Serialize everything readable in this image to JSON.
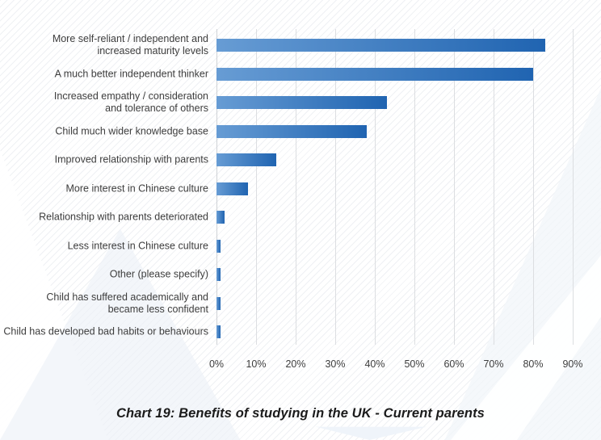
{
  "chart_data": {
    "type": "bar",
    "orientation": "horizontal",
    "title": "Chart 19: Benefits of studying in the UK - Current parents",
    "categories": [
      "More self-reliant / independent and increased maturity levels",
      "A much better independent thinker",
      "Increased empathy / consideration and tolerance of others",
      "Child much wider knowledge base",
      "Improved relationship with parents",
      "More interest in Chinese culture",
      "Relationship with parents deteriorated",
      "Less interest in Chinese culture",
      "Other (please specify)",
      "Child has suffered academically and became less confident",
      "Child has developed bad habits or behaviours"
    ],
    "category_line_breaks": [
      [
        "More self-reliant / independent and",
        "increased maturity levels"
      ],
      [
        "A much better independent thinker"
      ],
      [
        "Increased empathy / consideration",
        "and tolerance of others"
      ],
      [
        "Child much wider knowledge base"
      ],
      [
        "Improved relationship with parents"
      ],
      [
        "More interest in Chinese culture"
      ],
      [
        "Relationship with parents deteriorated"
      ],
      [
        "Less interest in Chinese culture"
      ],
      [
        "Other (please specify)"
      ],
      [
        "Child has suffered academically and",
        "became less confident"
      ],
      [
        "Child has developed bad habits or behaviours"
      ]
    ],
    "values": [
      83,
      80,
      43,
      38,
      15,
      8,
      2,
      1,
      1,
      1,
      1
    ],
    "unit": "%",
    "x_ticks": [
      "0%",
      "10%",
      "20%",
      "30%",
      "40%",
      "50%",
      "60%",
      "70%",
      "80%",
      "90%"
    ],
    "xlim": [
      0,
      90
    ],
    "xlabel": "",
    "ylabel": "",
    "grid": "vertical gridlines every 10%",
    "legend": false,
    "bar_gradient": [
      "#679cd4",
      "#2064b1"
    ],
    "gridline_color": "#dcdee1",
    "text_color": "#3d3d3d"
  }
}
